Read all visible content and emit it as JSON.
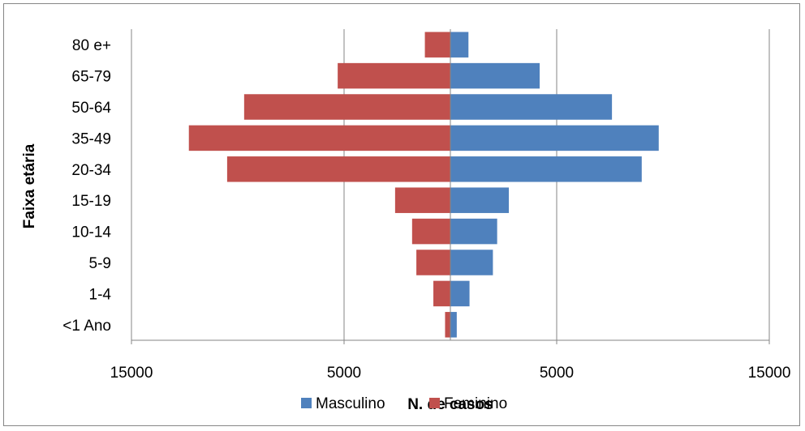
{
  "chart_data": {
    "type": "bar",
    "orientation": "horizontal",
    "subtype": "population-pyramid",
    "categories": [
      "80 e+",
      "65-79",
      "50-64",
      "35-49",
      "20-34",
      "15-19",
      "10-14",
      "5-9",
      "1-4",
      "<1 Ano"
    ],
    "series": [
      {
        "name": "Masculino",
        "color": "#4f81bd",
        "side": "right",
        "values": [
          850,
          4200,
          7600,
          9800,
          9000,
          2750,
          2200,
          2000,
          900,
          300
        ]
      },
      {
        "name": "Feminino",
        "color": "#c0504d",
        "side": "left",
        "values": [
          1200,
          5300,
          9700,
          12300,
          10500,
          2600,
          1800,
          1600,
          800,
          250
        ]
      }
    ],
    "xlabel": "N. de casos",
    "ylabel": "Faixa etária",
    "xlim": [
      -15000,
      15000
    ],
    "x_tick_values": [
      -15000,
      -5000,
      5000,
      15000
    ],
    "x_tick_labels": [
      "15000",
      "5000",
      "5000",
      "15000"
    ],
    "grid": "vertical",
    "legend": "bottom"
  }
}
